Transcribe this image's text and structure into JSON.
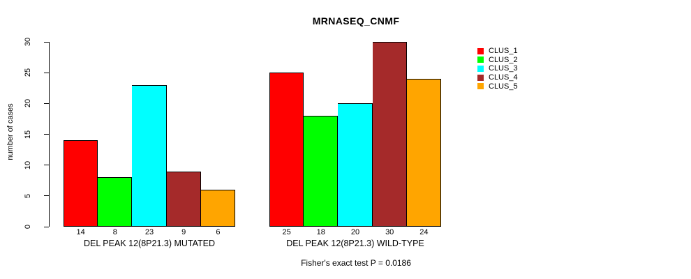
{
  "chart_data": {
    "type": "bar",
    "title": "MRNASEQ_CNMF",
    "ylabel": "number of cases",
    "xlabel": "",
    "ylim": [
      0,
      30
    ],
    "yticks": [
      0,
      5,
      10,
      15,
      20,
      25,
      30
    ],
    "grid": false,
    "legend_position": "right",
    "footnote": "Fisher's exact test P = 0.0186",
    "bar_value_labels_shown": true,
    "groups": [
      {
        "label": "DEL PEAK 12(8P21.3) MUTATED",
        "values": [
          14,
          8,
          23,
          9,
          6
        ]
      },
      {
        "label": "DEL PEAK 12(8P21.3) WILD-TYPE",
        "values": [
          25,
          18,
          20,
          30,
          24
        ]
      }
    ],
    "series": [
      {
        "name": "CLUS_1",
        "color": "#FF0000"
      },
      {
        "name": "CLUS_2",
        "color": "#00FF00"
      },
      {
        "name": "CLUS_3",
        "color": "#00FFFF"
      },
      {
        "name": "CLUS_4",
        "color": "#A52A2A"
      },
      {
        "name": "CLUS_5",
        "color": "#FFA500"
      }
    ]
  }
}
